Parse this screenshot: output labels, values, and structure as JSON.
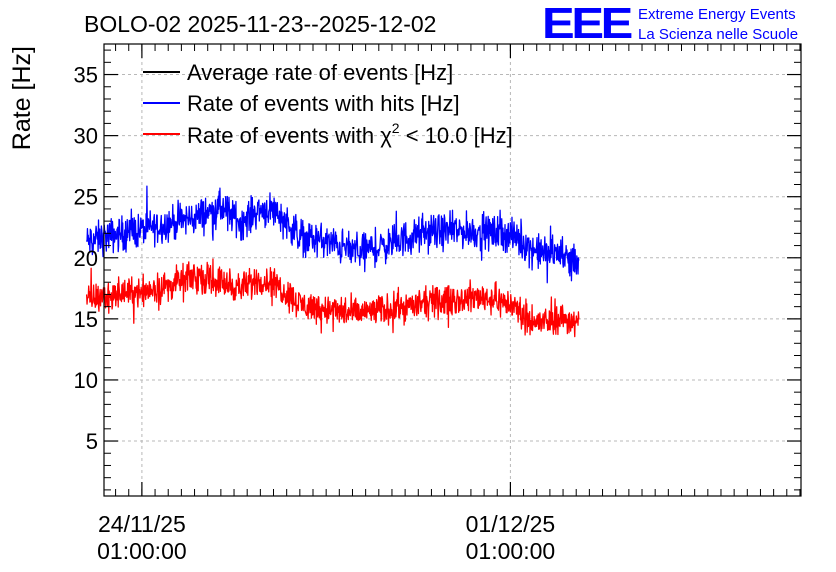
{
  "chart_data": {
    "type": "line",
    "title": "BOLO-02 2025-11-23--2025-12-02",
    "ylabel": "Rate [Hz]",
    "xlabel": "",
    "ylim": [
      0.5,
      37.5
    ],
    "yticks": [
      5,
      10,
      15,
      20,
      25,
      30,
      35
    ],
    "grid": true,
    "legend_position": "top-left",
    "x_range_days": [
      -0.72,
      12.52
    ],
    "x_ticks": [
      {
        "day": 0,
        "line1": "24/11/25",
        "line2": "01:00:00"
      },
      {
        "day": 7,
        "line1": "01/12/25",
        "line2": "01:00:00"
      }
    ],
    "x_unit": "days since 24/11/25 01:00:00",
    "series": [
      {
        "name": "Average rate of events [Hz]",
        "color": "#000000",
        "visible": false,
        "x": [],
        "values": []
      },
      {
        "name": "Rate of events with hits [Hz]",
        "color": "#0000ff",
        "noise": 1.2,
        "x": [
          -1.05,
          -0.6,
          0,
          0.5,
          1,
          1.5,
          1.9,
          2.2,
          2.5,
          3.0,
          3.5,
          4.0,
          4.5,
          5.0,
          5.5,
          6.0,
          6.5,
          7.0,
          7.5,
          8.0,
          8.3
        ],
        "values": [
          21.3,
          21.8,
          22.3,
          22.8,
          23.3,
          24.1,
          22.9,
          23.9,
          24.0,
          21.8,
          21.3,
          20.6,
          20.8,
          21.6,
          22.1,
          22.2,
          22.1,
          21.9,
          20.5,
          20.3,
          19.8
        ]
      },
      {
        "name": "Rate of events with χ2 < 10.0 [Hz]",
        "color": "#ff0000",
        "noise": 1.05,
        "x": [
          -1.05,
          -0.6,
          0,
          0.5,
          1,
          1.5,
          1.9,
          2.2,
          2.5,
          3.0,
          3.5,
          4.0,
          4.5,
          5.0,
          5.5,
          6.0,
          6.5,
          7.0,
          7.5,
          8.0,
          8.3
        ],
        "values": [
          16.5,
          16.9,
          17.3,
          17.7,
          18.5,
          18.0,
          17.5,
          18.2,
          18.0,
          16.2,
          15.8,
          15.4,
          15.7,
          16.0,
          16.3,
          16.6,
          16.8,
          16.2,
          14.6,
          15.1,
          14.5
        ]
      }
    ],
    "legend_labels": {
      "black": "Average rate of events [Hz]",
      "blue": "Rate of events with hits [Hz]",
      "red_prefix": "Rate of events with ",
      "red_symbol": "χ",
      "red_superscript": "2",
      "red_suffix": " < 10.0 [Hz]"
    }
  },
  "logo": {
    "mark": "EEE",
    "line1": "Extreme Energy Events",
    "line2": "La Scienza nelle Scuole",
    "color": "#0000ff"
  }
}
